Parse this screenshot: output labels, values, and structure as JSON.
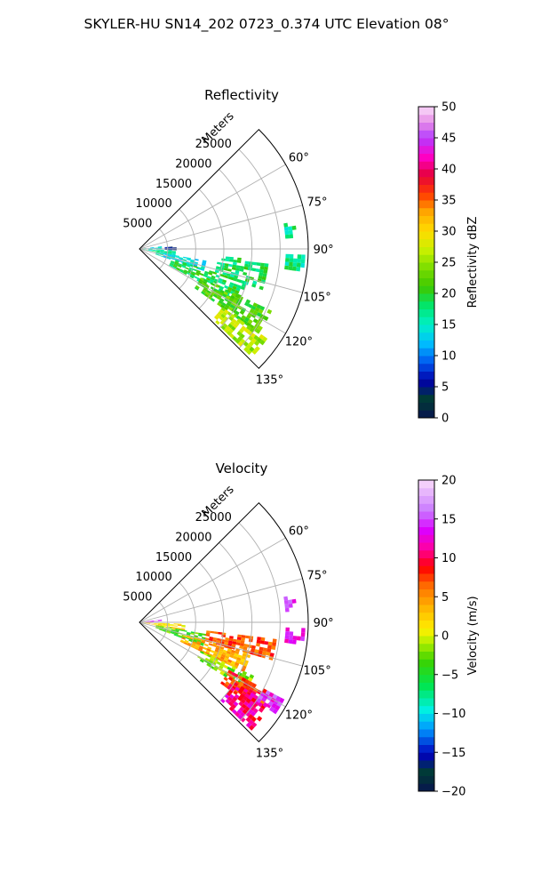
{
  "suptitle": "SKYLER-HU  SN14_202  0723_0.374 UTC Elevation 08°",
  "chart_data": [
    {
      "type": "heatmap",
      "projection": "polar sector",
      "title": "Reflectivity",
      "range_label": "Meters",
      "range_ticks": [
        5000,
        10000,
        15000,
        20000,
        25000
      ],
      "range_tick_labels": [
        "5000",
        "10000",
        "15000",
        "20000",
        "25000"
      ],
      "range_max": 30000,
      "azimuth_range_deg": [
        45,
        135
      ],
      "azimuth_ticks": [
        60,
        75,
        90,
        105,
        120,
        135
      ],
      "azimuth_tick_labels": [
        "60°",
        "75°",
        "90°",
        "105°",
        "120°",
        "135°"
      ],
      "grid": true,
      "colorbar": {
        "label": "Reflectivity dBZ",
        "range": [
          0,
          50
        ],
        "ticks": [
          0,
          5,
          10,
          15,
          20,
          25,
          30,
          35,
          40,
          45,
          50
        ],
        "tick_labels": [
          "0",
          "5",
          "10",
          "15",
          "20",
          "25",
          "30",
          "35",
          "40",
          "45",
          "50"
        ]
      },
      "echo_regions": [
        {
          "az": [
            92,
            100
          ],
          "r": [
            200,
            6500
          ],
          "value": 17
        },
        {
          "az": [
            83,
            90
          ],
          "r": [
            500,
            3500
          ],
          "value": 15
        },
        {
          "az": [
            86,
            92
          ],
          "r": [
            4500,
            6200
          ],
          "value": 5
        },
        {
          "az": [
            100,
            108
          ],
          "r": [
            3000,
            12000
          ],
          "value": 14
        },
        {
          "az": [
            107,
            118
          ],
          "r": [
            6000,
            20000
          ],
          "value": 19
        },
        {
          "az": [
            115,
            125
          ],
          "r": [
            12000,
            26000
          ],
          "value": 22
        },
        {
          "az": [
            125,
            133
          ],
          "r": [
            18000,
            27500
          ],
          "value": 26
        },
        {
          "az": [
            95,
            108
          ],
          "r": [
            14000,
            23000
          ],
          "value": 18
        },
        {
          "az": [
            80,
            85
          ],
          "r": [
            26000,
            28000
          ],
          "value": 17
        },
        {
          "az": [
            92,
            98
          ],
          "r": [
            26000,
            29500
          ],
          "value": 17
        }
      ]
    },
    {
      "type": "heatmap",
      "projection": "polar sector",
      "title": "Velocity",
      "range_label": "Meters",
      "range_ticks": [
        5000,
        10000,
        15000,
        20000,
        25000
      ],
      "range_tick_labels": [
        "5000",
        "10000",
        "15000",
        "20000",
        "25000"
      ],
      "range_max": 30000,
      "azimuth_range_deg": [
        45,
        135
      ],
      "azimuth_ticks": [
        60,
        75,
        90,
        105,
        120,
        135
      ],
      "azimuth_tick_labels": [
        "60°",
        "75°",
        "90°",
        "105°",
        "120°",
        "135°"
      ],
      "grid": true,
      "colorbar": {
        "label": "Velocity (m/s)",
        "range": [
          -20,
          20
        ],
        "ticks": [
          -20,
          -15,
          -10,
          -5,
          0,
          5,
          10,
          15,
          20
        ],
        "tick_labels": [
          "−20",
          "−15",
          "−10",
          "−5",
          "0",
          "5",
          "10",
          "15",
          "20"
        ]
      },
      "echo_regions": [
        {
          "az": [
            83,
            90
          ],
          "r": [
            500,
            4000
          ],
          "value": 15
        },
        {
          "az": [
            92,
            100
          ],
          "r": [
            500,
            8000
          ],
          "value": 2
        },
        {
          "az": [
            100,
            110
          ],
          "r": [
            3000,
            12000
          ],
          "value": -3
        },
        {
          "az": [
            105,
            115
          ],
          "r": [
            8000,
            20000
          ],
          "value": 4
        },
        {
          "az": [
            97,
            106
          ],
          "r": [
            12000,
            24000
          ],
          "value": 7
        },
        {
          "az": [
            115,
            122
          ],
          "r": [
            12000,
            22000
          ],
          "value": -2
        },
        {
          "az": [
            118,
            126
          ],
          "r": [
            18000,
            26000
          ],
          "value": 8
        },
        {
          "az": [
            122,
            133
          ],
          "r": [
            20000,
            27500
          ],
          "value": 11
        },
        {
          "az": [
            118,
            123
          ],
          "r": [
            25000,
            29000
          ],
          "value": 14
        },
        {
          "az": [
            80,
            85
          ],
          "r": [
            26000,
            28000
          ],
          "value": 14
        },
        {
          "az": [
            92,
            98
          ],
          "r": [
            26000,
            29500
          ],
          "value": 13
        }
      ]
    }
  ]
}
